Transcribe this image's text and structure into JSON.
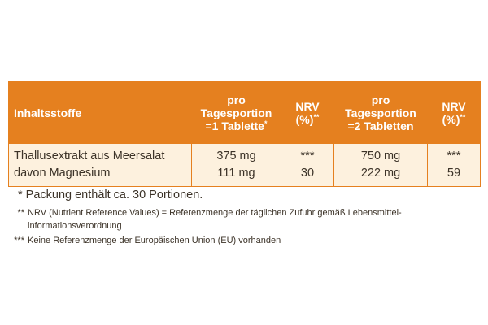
{
  "table": {
    "header": [
      [
        "Inhaltsstoffe"
      ],
      [
        "pro",
        "Tagesportion",
        {
          "text": "=1 Tablette",
          "sup": "*"
        }
      ],
      [
        "NRV",
        {
          "text": "(%)",
          "sup": "**"
        }
      ],
      [
        "pro",
        "Tagesportion",
        "=2 Tabletten"
      ],
      [
        "NRV",
        {
          "text": "(%)",
          "sup": "**"
        }
      ]
    ],
    "rows": [
      [
        "Thallusextrakt aus Meersalat",
        "375 mg",
        "***",
        "750 mg",
        "***"
      ],
      [
        "davon Magnesium",
        "111 mg",
        "30",
        "222 mg",
        "59"
      ]
    ]
  },
  "footnotes": [
    {
      "marker": "*",
      "lines": [
        "Packung enthält ca. 30 Portionen."
      ]
    },
    {
      "marker": "**",
      "lines": [
        "NRV (Nutrient Reference Values) = Referenzmenge der täglichen Zufuhr gemäß Lebensmittel-",
        "informationsverordnung"
      ]
    },
    {
      "marker": "***",
      "lines": [
        "Keine Referenzmenge der Europäischen Union (EU) vorhanden"
      ]
    }
  ]
}
